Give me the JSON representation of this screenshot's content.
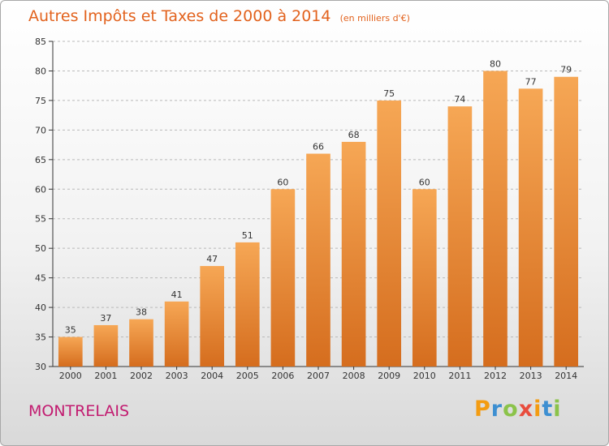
{
  "chart_data": {
    "type": "bar",
    "title": "Autres Impôts et Taxes de 2000 à 2014",
    "subtitle": "(en milliers d'€)",
    "categories": [
      "2000",
      "2001",
      "2002",
      "2003",
      "2004",
      "2005",
      "2006",
      "2007",
      "2008",
      "2009",
      "2010",
      "2011",
      "2012",
      "2013",
      "2014"
    ],
    "values": [
      35,
      37,
      38,
      41,
      47,
      51,
      60,
      66,
      68,
      75,
      60,
      74,
      80,
      77,
      79
    ],
    "ylim": [
      30,
      85
    ],
    "yticks": [
      30,
      35,
      40,
      45,
      50,
      55,
      60,
      65,
      70,
      75,
      80,
      85
    ],
    "grid": true,
    "bar_color_top": "#f6a755",
    "bar_color_bottom": "#d56d1e"
  },
  "place_name": "MONTRELAIS",
  "brand": {
    "letters": [
      "P",
      "r",
      "o",
      "x",
      "i",
      "t",
      "i"
    ],
    "colors": [
      "#f39c12",
      "#3d8fd1",
      "#8bc34a",
      "#e84c3d",
      "#f39c12",
      "#3d8fd1",
      "#8bc34a"
    ]
  },
  "colors": {
    "title": "#e2621d",
    "place": "#c21b70"
  }
}
